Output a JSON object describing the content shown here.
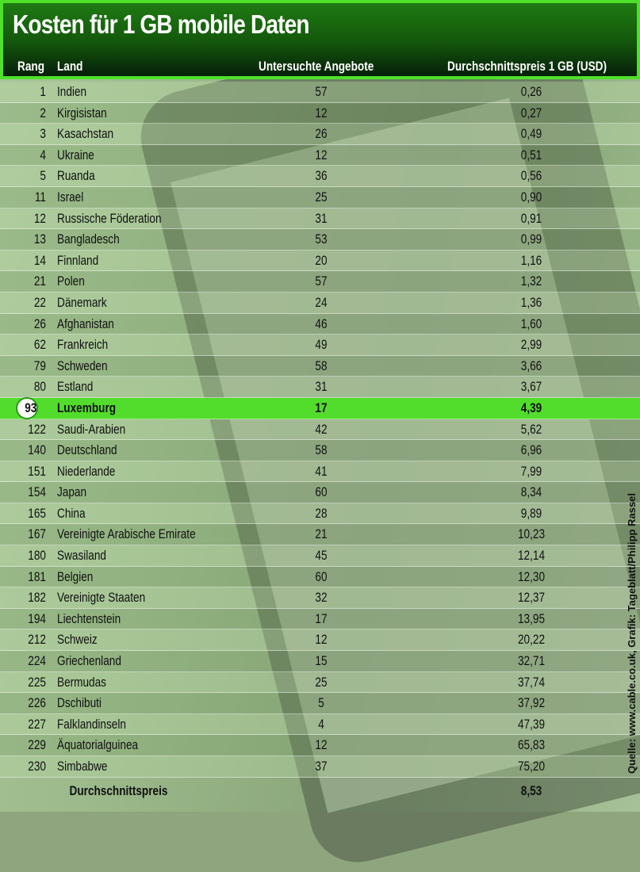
{
  "chart_data": {
    "type": "table",
    "title": "Kosten für 1 GB mobile Daten",
    "columns": [
      "Rang",
      "Land",
      "Untersuchte Angebote",
      "Durchschnittspreis 1 GB (USD)"
    ],
    "highlight_color": "#52dd2c",
    "header_color": "#145a0c",
    "rows": [
      {
        "rank": "1",
        "land": "Indien",
        "offers": "57",
        "price": "0,26"
      },
      {
        "rank": "2",
        "land": "Kirgisistan",
        "offers": "12",
        "price": "0,27"
      },
      {
        "rank": "3",
        "land": "Kasachstan",
        "offers": "26",
        "price": "0,49"
      },
      {
        "rank": "4",
        "land": "Ukraine",
        "offers": "12",
        "price": "0,51"
      },
      {
        "rank": "5",
        "land": "Ruanda",
        "offers": "36",
        "price": "0,56"
      },
      {
        "rank": "11",
        "land": "Israel",
        "offers": "25",
        "price": "0,90"
      },
      {
        "rank": "12",
        "land": "Russische Föderation",
        "offers": "31",
        "price": "0,91"
      },
      {
        "rank": "13",
        "land": "Bangladesch",
        "offers": "53",
        "price": "0,99"
      },
      {
        "rank": "14",
        "land": "Finnland",
        "offers": "20",
        "price": "1,16"
      },
      {
        "rank": "21",
        "land": "Polen",
        "offers": "57",
        "price": "1,32"
      },
      {
        "rank": "22",
        "land": "Dänemark",
        "offers": "24",
        "price": "1,36"
      },
      {
        "rank": "26",
        "land": "Afghanistan",
        "offers": "46",
        "price": "1,60"
      },
      {
        "rank": "62",
        "land": "Frankreich",
        "offers": "49",
        "price": "2,99"
      },
      {
        "rank": "79",
        "land": "Schweden",
        "offers": "58",
        "price": "3,66"
      },
      {
        "rank": "80",
        "land": "Estland",
        "offers": "31",
        "price": "3,67"
      },
      {
        "rank": "93",
        "land": "Luxemburg",
        "offers": "17",
        "price": "4,39",
        "highlight": true
      },
      {
        "rank": "122",
        "land": "Saudi-Arabien",
        "offers": "42",
        "price": "5,62"
      },
      {
        "rank": "140",
        "land": "Deutschland",
        "offers": "58",
        "price": "6,96"
      },
      {
        "rank": "151",
        "land": "Niederlande",
        "offers": "41",
        "price": "7,99"
      },
      {
        "rank": "154",
        "land": "Japan",
        "offers": "60",
        "price": "8,34"
      },
      {
        "rank": "165",
        "land": "China",
        "offers": "28",
        "price": "9,89"
      },
      {
        "rank": "167",
        "land": "Vereinigte Arabische Emirate",
        "offers": "21",
        "price": "10,23"
      },
      {
        "rank": "180",
        "land": "Swasiland",
        "offers": "45",
        "price": "12,14"
      },
      {
        "rank": "181",
        "land": "Belgien",
        "offers": "60",
        "price": "12,30"
      },
      {
        "rank": "182",
        "land": "Vereinigte Staaten",
        "offers": "32",
        "price": "12,37"
      },
      {
        "rank": "194",
        "land": "Liechtenstein",
        "offers": "17",
        "price": "13,95"
      },
      {
        "rank": "212",
        "land": "Schweiz",
        "offers": "12",
        "price": "20,22"
      },
      {
        "rank": "224",
        "land": "Griechenland",
        "offers": "15",
        "price": "32,71"
      },
      {
        "rank": "225",
        "land": "Bermudas",
        "offers": "25",
        "price": "37,74"
      },
      {
        "rank": "226",
        "land": "Dschibuti",
        "offers": "5",
        "price": "37,92"
      },
      {
        "rank": "227",
        "land": "Falklandinseln",
        "offers": "4",
        "price": "47,39"
      },
      {
        "rank": "229",
        "land": "Äquatorialguinea",
        "offers": "12",
        "price": "65,83"
      },
      {
        "rank": "230",
        "land": "Simbabwe",
        "offers": "37",
        "price": "75,20"
      }
    ],
    "average": {
      "label": "Durchschnittspreis",
      "price": "8,53"
    },
    "source": "Quelle: www.cable.co.uk, Grafik: Tageblatt/Philipp Rassel"
  }
}
